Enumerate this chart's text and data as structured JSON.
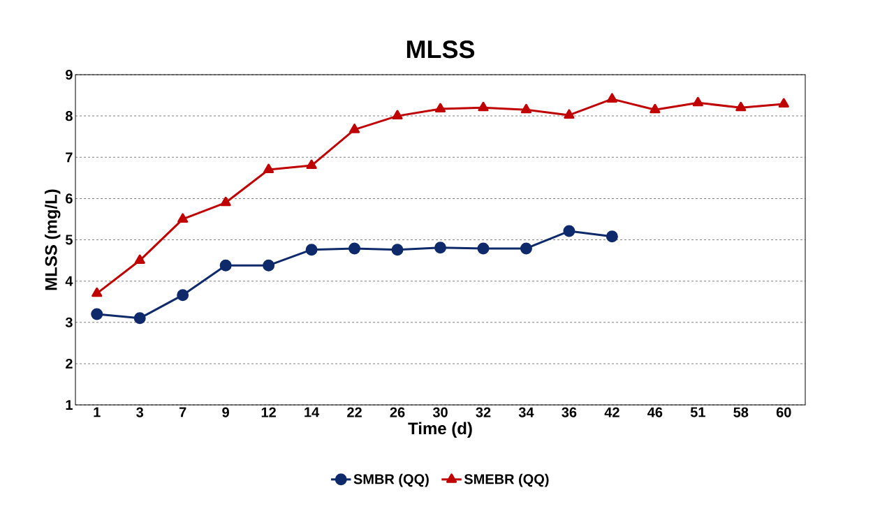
{
  "chart_data": {
    "type": "line",
    "title": "MLSS",
    "xlabel": "Time (d)",
    "ylabel": "MLSS (mg/L)",
    "categories": [
      "1",
      "3",
      "7",
      "9",
      "12",
      "14",
      "22",
      "26",
      "30",
      "32",
      "34",
      "36",
      "42",
      "46",
      "51",
      "58",
      "60"
    ],
    "series": [
      {
        "name": "SMBR (QQ)",
        "color": "#0e2a6b",
        "marker": "circle",
        "values": [
          3.2,
          3.1,
          3.66,
          4.38,
          4.38,
          4.76,
          4.79,
          4.76,
          4.81,
          4.79,
          4.79,
          5.21,
          5.08,
          null,
          null,
          null,
          null
        ]
      },
      {
        "name": "SMEBR (QQ)",
        "color": "#c00000",
        "marker": "triangle",
        "values": [
          3.7,
          4.5,
          5.5,
          5.9,
          6.7,
          6.8,
          7.67,
          8.0,
          8.17,
          8.2,
          8.15,
          8.02,
          8.41,
          8.15,
          8.32,
          8.2,
          8.29
        ]
      }
    ],
    "ylim": [
      1,
      9
    ],
    "yticks": [
      1,
      2,
      3,
      4,
      5,
      6,
      7,
      8,
      9
    ],
    "grid": "y",
    "legend": "bottom",
    "line_style": "solid"
  }
}
